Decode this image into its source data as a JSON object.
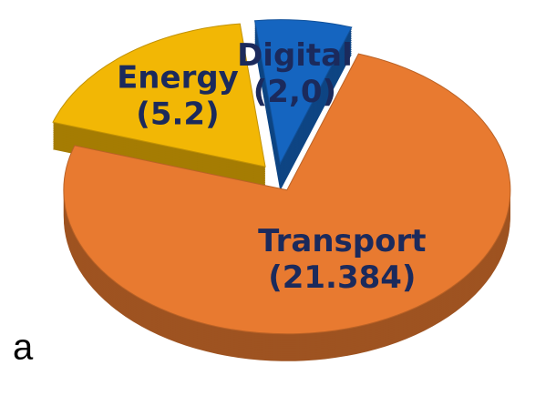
{
  "panel_label": "a",
  "chart_data": {
    "type": "pie",
    "categories": [
      "Energy",
      "Digital",
      "Transport"
    ],
    "values": [
      5.2,
      2.0,
      21.384
    ],
    "value_labels": [
      "(5.2)",
      "(2,0)",
      "(21.384)"
    ],
    "colors": [
      "#f2b705",
      "#1565c0",
      "#e87a30"
    ]
  }
}
